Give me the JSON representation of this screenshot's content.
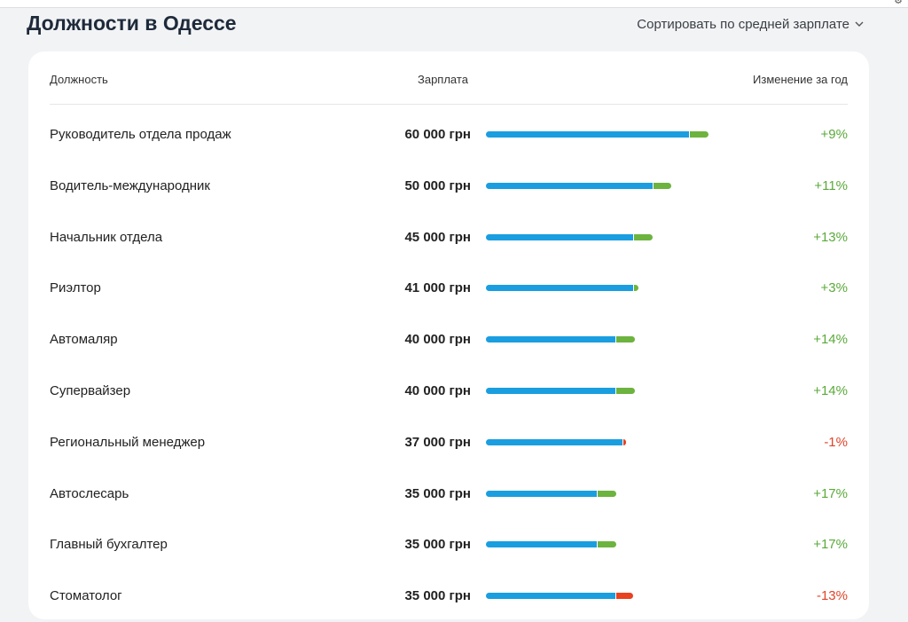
{
  "page": {
    "title": "Должности в Одессе",
    "sort_label": "Сортировать по средней зарплате"
  },
  "table": {
    "headers": {
      "position": "Должность",
      "salary": "Зарплата",
      "change": "Изменение за год"
    },
    "rows": [
      {
        "name": "Руководитель отдела продаж",
        "salary": "60 000 грн",
        "change": "+9%",
        "salary_value": 60000,
        "change_value": 9
      },
      {
        "name": "Водитель-международник",
        "salary": "50 000 грн",
        "change": "+11%",
        "salary_value": 50000,
        "change_value": 11
      },
      {
        "name": "Начальник отдела",
        "salary": "45 000 грн",
        "change": "+13%",
        "salary_value": 45000,
        "change_value": 13
      },
      {
        "name": "Риэлтор",
        "salary": "41 000 грн",
        "change": "+3%",
        "salary_value": 41000,
        "change_value": 3
      },
      {
        "name": "Автомаляр",
        "salary": "40 000 грн",
        "change": "+14%",
        "salary_value": 40000,
        "change_value": 14
      },
      {
        "name": "Супервайзер",
        "salary": "40 000 грн",
        "change": "+14%",
        "salary_value": 40000,
        "change_value": 14
      },
      {
        "name": "Региональный менеджер",
        "salary": "37 000 грн",
        "change": "-1%",
        "salary_value": 37000,
        "change_value": -1
      },
      {
        "name": "Автослесарь",
        "salary": "35 000 грн",
        "change": "+17%",
        "salary_value": 35000,
        "change_value": 17
      },
      {
        "name": "Главный бухгалтер",
        "salary": "35 000 грн",
        "change": "+17%",
        "salary_value": 35000,
        "change_value": 17
      },
      {
        "name": "Стоматолог",
        "salary": "35 000 грн",
        "change": "-13%",
        "salary_value": 35000,
        "change_value": -13
      }
    ]
  },
  "colors": {
    "bar_base": "#1a9ee0",
    "bar_increase": "#6db33f",
    "bar_decrease": "#e8421f",
    "text_increase": "#5aaa3a",
    "text_decrease": "#e0442a"
  }
}
